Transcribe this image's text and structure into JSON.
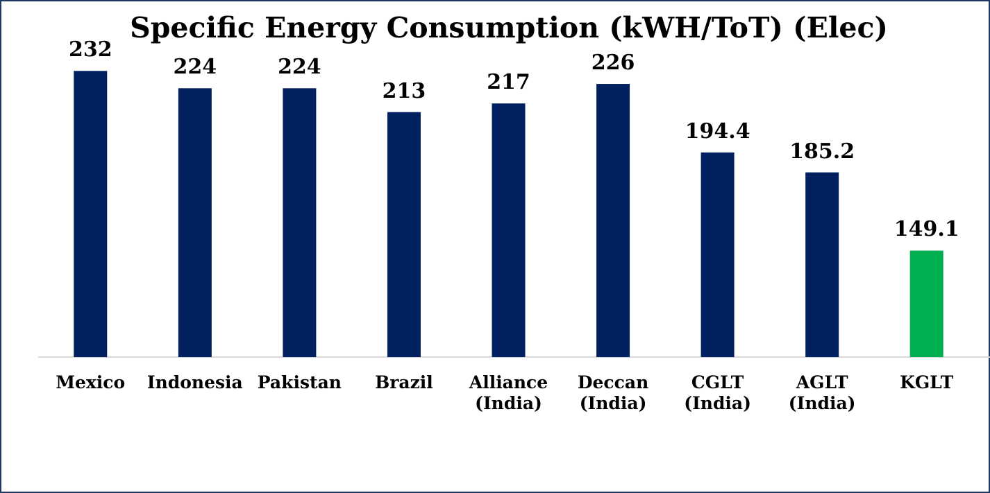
{
  "chart_data": {
    "type": "bar",
    "title": "Specific Energy Consumption (kWH/ToT) (Elec)",
    "categories": [
      "Mexico",
      "Indonesia",
      "Pakistan",
      "Brazil",
      "Alliance (India)",
      "Deccan (India)",
      "CGLT (India)",
      "AGLT (India)",
      "KGLT"
    ],
    "values": [
      232,
      224,
      224,
      213,
      217,
      226,
      194.4,
      185.2,
      149.1
    ],
    "colors": [
      "#002060",
      "#002060",
      "#002060",
      "#002060",
      "#002060",
      "#002060",
      "#002060",
      "#002060",
      "#00b050"
    ],
    "ylim": [
      100,
      250
    ]
  }
}
